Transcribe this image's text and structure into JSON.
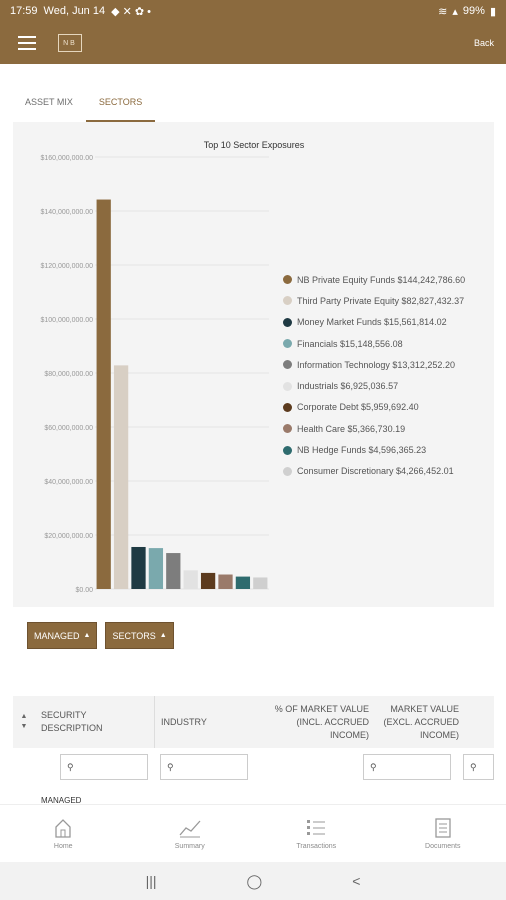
{
  "status_bar": {
    "time": "17:59",
    "date": "Wed, Jun 14",
    "battery": "99%"
  },
  "app_bar": {
    "logo_text": "NB",
    "back_label": "Back"
  },
  "tabs": [
    {
      "label": "ASSET MIX",
      "active": false
    },
    {
      "label": "SECTORS",
      "active": true
    }
  ],
  "chart_data": {
    "type": "bar",
    "title": "Top 10 Sector Exposures",
    "xlabel": "",
    "ylabel": "",
    "ylim": [
      0,
      160000000
    ],
    "yticks": [
      0,
      20000000,
      40000000,
      60000000,
      80000000,
      100000000,
      120000000,
      140000000,
      160000000
    ],
    "ytick_labels": [
      "$0.00",
      "$20,000,000.00",
      "$40,000,000.00",
      "$60,000,000.00",
      "$80,000,000.00",
      "$100,000,000.00",
      "$120,000,000.00",
      "$140,000,000.00",
      "$160,000,000.00"
    ],
    "grid": true,
    "legend_position": "right",
    "categories": [
      "NB Private Equity Funds",
      "Third Party Private Equity",
      "Money Market Funds",
      "Financials",
      "Information Technology",
      "Industrials",
      "Corporate Debt",
      "Health Care",
      "NB Hedge Funds",
      "Consumer Discretionary"
    ],
    "values": [
      144242786.6,
      82827432.37,
      15561814.02,
      15148556.08,
      13312252.2,
      6925036.57,
      5959692.4,
      5366730.19,
      4596365.23,
      4266452.01
    ],
    "colors": [
      "#8b6a3e",
      "#d8cfc4",
      "#1f3a43",
      "#7aa9ad",
      "#7d7d7d",
      "#e2e2e2",
      "#5c3b1e",
      "#9a7a6a",
      "#2e6b6e",
      "#cfcfcf"
    ],
    "legend": [
      "NB Private Equity Funds $144,242,786.60",
      "Third Party Private Equity $82,827,432.37",
      "Money Market Funds $15,561,814.02",
      "Financials $15,148,556.08",
      "Information Technology $13,312,252.20",
      "Industrials $6,925,036.57",
      "Corporate Debt $5,959,692.40",
      "Health Care $5,366,730.19",
      "NB Hedge Funds $4,596,365.23",
      "Consumer Discretionary $4,266,452.01"
    ]
  },
  "filters": {
    "managed_label": "MANAGED",
    "sectors_label": "SECTORS"
  },
  "table": {
    "headers": {
      "security": "SECURITY DESCRIPTION",
      "industry": "INDUSTRY",
      "pct_market_value": "% OF MARKET VALUE (INCL. ACCRUED INCOME)",
      "market_value": "MARKET VALUE (EXCL. ACCRUED INCOME)"
    },
    "partial_row": {
      "label": "MANAGED"
    }
  },
  "bottom_nav": [
    "Home",
    "Summary",
    "Transactions",
    "Documents"
  ]
}
